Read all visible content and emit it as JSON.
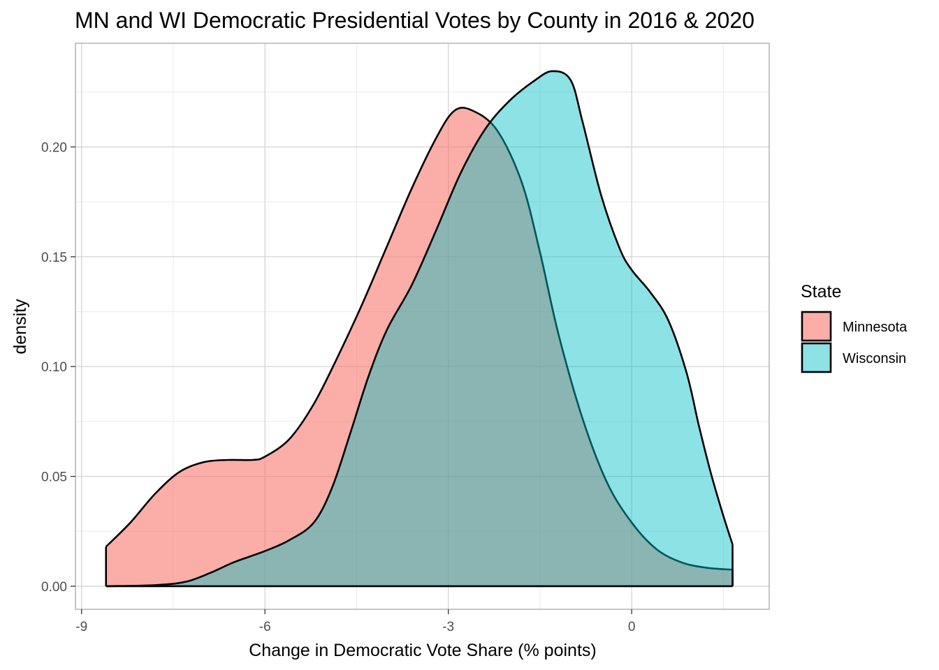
{
  "chart_data": {
    "type": "area",
    "title": "MN and WI Democratic Presidential Votes by County in 2016 & 2020",
    "xlabel": "Change in Democratic Vote Share (% points)",
    "ylabel": "density",
    "xlim": [
      -9.1,
      2.25
    ],
    "ylim": [
      -0.0105,
      0.2472
    ],
    "x_ticks": [
      -9,
      -6,
      -3,
      0
    ],
    "x_tick_labels": [
      "-9",
      "-6",
      "-3",
      "0"
    ],
    "x_minor_ticks": [
      -7.5,
      -4.5,
      -1.5,
      1.5
    ],
    "y_ticks": [
      0.0,
      0.05,
      0.1,
      0.15,
      0.2
    ],
    "y_tick_labels": [
      "0.00",
      "0.05",
      "0.10",
      "0.15",
      "0.20"
    ],
    "y_minor_ticks": [
      0.025,
      0.075,
      0.125,
      0.175,
      0.225
    ],
    "grid": true,
    "legend": {
      "title": "State",
      "position": "right"
    },
    "series": [
      {
        "name": "Minnesota",
        "fill": "#F8766D",
        "fill_opacity": 0.6,
        "points": [
          [
            -8.6,
            0.018
          ],
          [
            -8.2,
            0.029
          ],
          [
            -7.8,
            0.042
          ],
          [
            -7.4,
            0.052
          ],
          [
            -7.0,
            0.0565
          ],
          [
            -6.6,
            0.0575
          ],
          [
            -6.2,
            0.0575
          ],
          [
            -6.0,
            0.059
          ],
          [
            -5.6,
            0.067
          ],
          [
            -5.2,
            0.083
          ],
          [
            -4.8,
            0.105
          ],
          [
            -4.4,
            0.129
          ],
          [
            -4.0,
            0.155
          ],
          [
            -3.6,
            0.181
          ],
          [
            -3.2,
            0.204
          ],
          [
            -2.9,
            0.2165
          ],
          [
            -2.6,
            0.2165
          ],
          [
            -2.2,
            0.2075
          ],
          [
            -1.8,
            0.184
          ],
          [
            -1.5,
            0.152
          ],
          [
            -1.2,
            0.115
          ],
          [
            -0.8,
            0.076
          ],
          [
            -0.4,
            0.047
          ],
          [
            0.0,
            0.029
          ],
          [
            0.4,
            0.017
          ],
          [
            0.8,
            0.011
          ],
          [
            1.2,
            0.0085
          ],
          [
            1.65,
            0.0075
          ]
        ]
      },
      {
        "name": "Wisconsin",
        "fill": "#00BFC4",
        "fill_opacity": 0.45,
        "points": [
          [
            -8.6,
            0.0
          ],
          [
            -7.8,
            0.0005
          ],
          [
            -7.3,
            0.002
          ],
          [
            -6.9,
            0.006
          ],
          [
            -6.5,
            0.011
          ],
          [
            -6.0,
            0.016
          ],
          [
            -5.6,
            0.021
          ],
          [
            -5.2,
            0.029
          ],
          [
            -4.9,
            0.045
          ],
          [
            -4.6,
            0.07
          ],
          [
            -4.3,
            0.096
          ],
          [
            -4.0,
            0.117
          ],
          [
            -3.6,
            0.137
          ],
          [
            -3.2,
            0.162
          ],
          [
            -2.8,
            0.188
          ],
          [
            -2.4,
            0.208
          ],
          [
            -2.0,
            0.221
          ],
          [
            -1.6,
            0.23
          ],
          [
            -1.3,
            0.2345
          ],
          [
            -1.0,
            0.2305
          ],
          [
            -0.8,
            0.211
          ],
          [
            -0.5,
            0.178
          ],
          [
            -0.2,
            0.154
          ],
          [
            0.0,
            0.144
          ],
          [
            0.3,
            0.134
          ],
          [
            0.6,
            0.121
          ],
          [
            0.9,
            0.097
          ],
          [
            1.1,
            0.073
          ],
          [
            1.3,
            0.051
          ],
          [
            1.5,
            0.032
          ],
          [
            1.65,
            0.019
          ]
        ]
      }
    ]
  },
  "colors": {
    "background": "#ffffff",
    "grid_major": "#d4d4d4",
    "grid_minor": "#ebebeb",
    "panel_border": "#a8a8a8",
    "outline": "#000000",
    "tick_label": "#4d4d4d"
  }
}
